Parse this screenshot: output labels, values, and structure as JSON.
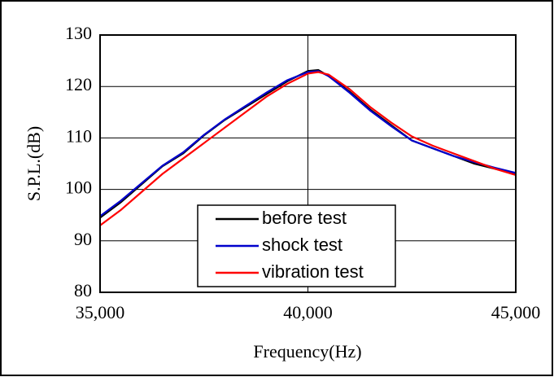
{
  "chart_data": {
    "type": "line",
    "xlabel": "Frequency(Hz)",
    "ylabel": "S.P.L.(dB)",
    "x": [
      35000,
      35500,
      36000,
      36500,
      37000,
      37500,
      38000,
      38500,
      39000,
      39500,
      40000,
      40250,
      40500,
      41000,
      41500,
      42000,
      42500,
      43000,
      43500,
      44000,
      44500,
      45000
    ],
    "series": [
      {
        "name": "before test",
        "color": "#000000",
        "values": [
          94.5,
          97.5,
          101,
          104.5,
          107,
          110.5,
          113.5,
          116,
          118.5,
          121,
          123,
          123.2,
          122,
          119,
          115.5,
          112.5,
          109.5,
          108,
          106.5,
          105,
          104,
          103
        ]
      },
      {
        "name": "shock test",
        "color": "#0000cc",
        "values": [
          94.8,
          97.8,
          101.2,
          104.6,
          107.2,
          110.6,
          113.6,
          116.2,
          118.8,
          121.2,
          122.8,
          123,
          122,
          118.8,
          115.3,
          112.3,
          109.5,
          108,
          106.5,
          105.3,
          104.2,
          103.2
        ]
      },
      {
        "name": "vibration test",
        "color": "#ff0000",
        "values": [
          93,
          96,
          99.5,
          103,
          106,
          109,
          112,
          115,
          118,
          120.5,
          122.5,
          122.8,
          122.3,
          119.5,
          116,
          113,
          110.3,
          108.5,
          107,
          105.5,
          104,
          102.8
        ]
      }
    ],
    "xlim": [
      35000,
      45000
    ],
    "xticks": [
      {
        "value": 35000,
        "label": "35,000"
      },
      {
        "value": 40000,
        "label": "40,000"
      },
      {
        "value": 45000,
        "label": "45,000"
      }
    ],
    "ylim": [
      80,
      130
    ],
    "yticks": [
      80,
      90,
      100,
      110,
      120,
      130
    ],
    "grid": true,
    "legend": "bottom-center"
  }
}
